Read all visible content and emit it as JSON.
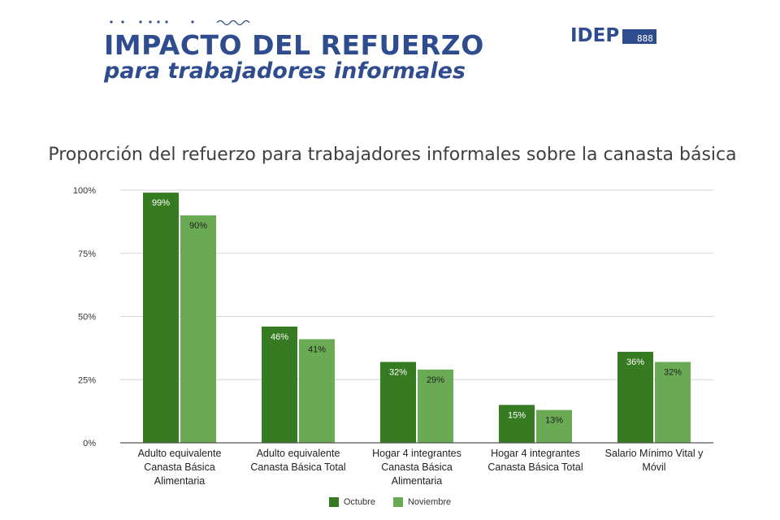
{
  "header": {
    "title": "IMPACTO DEL REFUERZO",
    "subtitle": "para trabajadores informales",
    "logo_text": "IDEP",
    "logo_suffix": "888"
  },
  "colors": {
    "octubre": "#367a22",
    "noviembre": "#6aaa55",
    "header": "#2f4d8e",
    "grid": "#d6d6d6",
    "axis": "#555555"
  },
  "chart_data": {
    "type": "bar",
    "title": "Proporción del refuerzo para trabajadores informales sobre la canasta básica",
    "categories": [
      [
        "Adulto equivalente",
        "Canasta Básica",
        "Alimentaria"
      ],
      [
        "Adulto equivalente",
        "Canasta Básica Total"
      ],
      [
        "Hogar 4 integrantes",
        "Canasta Básica",
        "Alimentaria"
      ],
      [
        "Hogar 4 integrantes",
        "Canasta Básica Total"
      ],
      [
        "Salario Mínimo Vital y",
        "Móvil"
      ]
    ],
    "series": [
      {
        "name": "Octubre",
        "values": [
          99,
          46,
          32,
          15,
          36
        ],
        "labels": [
          "99%",
          "46%",
          "32%",
          "15%",
          "36%"
        ]
      },
      {
        "name": "Noviembre",
        "values": [
          90,
          41,
          29,
          13,
          32
        ],
        "labels": [
          "90%",
          "41%",
          "29%",
          "13%",
          "32%"
        ]
      }
    ],
    "ylim": [
      0,
      100
    ],
    "yticks": [
      0,
      25,
      50,
      75,
      100
    ],
    "ytick_labels": [
      "0%",
      "25%",
      "50%",
      "75%",
      "100%"
    ],
    "grid": true,
    "legend": "bottom"
  }
}
